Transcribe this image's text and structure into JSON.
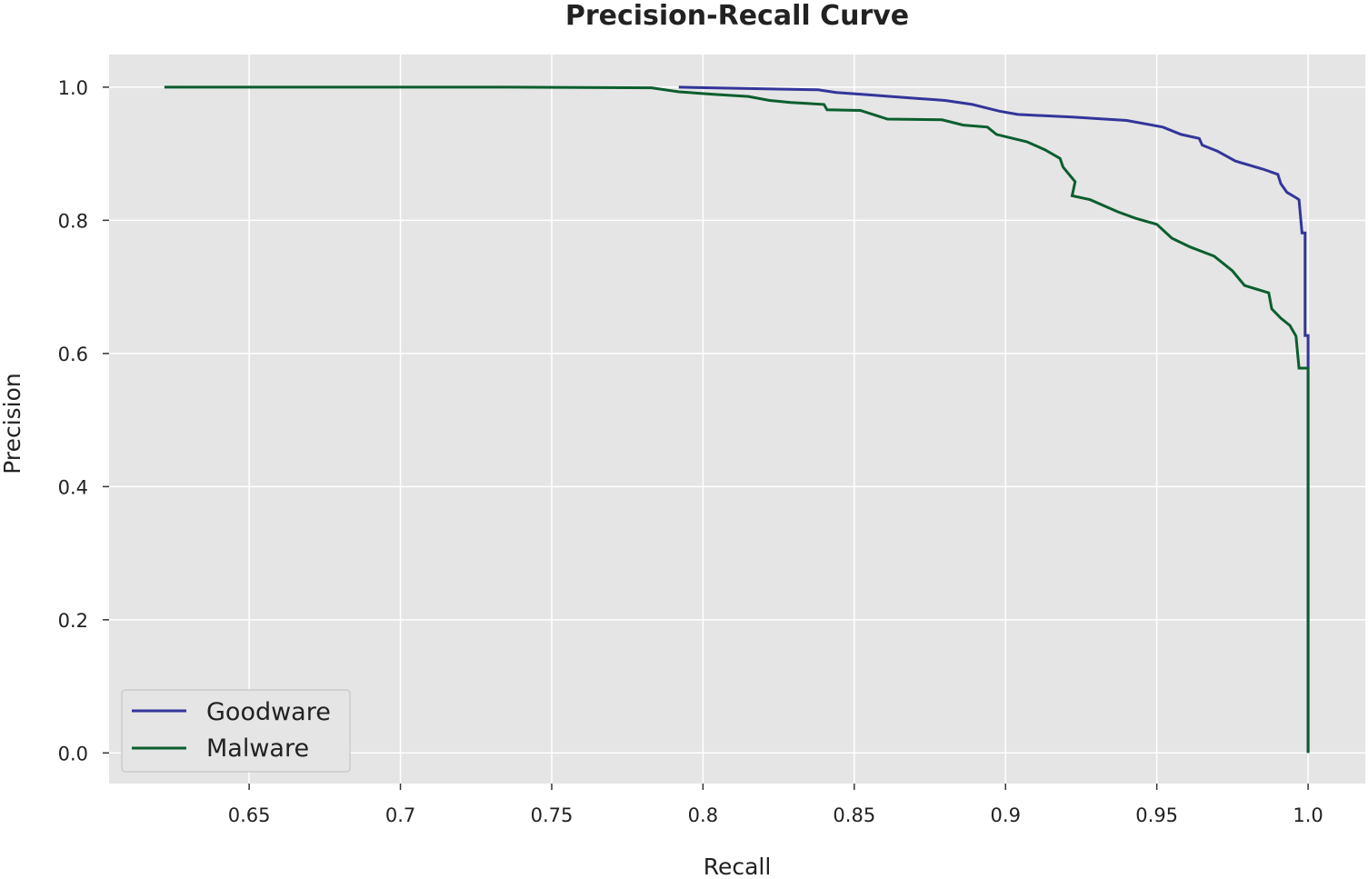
{
  "chart_data": {
    "type": "line",
    "title": "Precision-Recall Curve",
    "xlabel": "Recall",
    "ylabel": "Precision",
    "xlim": [
      0.6037,
      1.0189
    ],
    "ylim": [
      -0.046,
      1.049
    ],
    "xticks": [
      0.65,
      0.7,
      0.75,
      0.8,
      0.85,
      0.9,
      0.95,
      1.0
    ],
    "xtick_labels": [
      "0.65",
      "0.7",
      "0.75",
      "0.8",
      "0.85",
      "0.9",
      "0.95",
      "1.0"
    ],
    "yticks": [
      0.0,
      0.2,
      0.4,
      0.6,
      0.8,
      1.0
    ],
    "ytick_labels": [
      "0.0",
      "0.2",
      "0.4",
      "0.6",
      "0.8",
      "1.0"
    ],
    "grid": true,
    "background": "#e5e5e5",
    "legend_position": "bottom-left",
    "series": [
      {
        "name": "Goodware",
        "color": "#33359a",
        "x": [
          0.792,
          0.838,
          0.844,
          0.853,
          0.868,
          0.88,
          0.889,
          0.898,
          0.904,
          0.922,
          0.94,
          0.952,
          0.958,
          0.964,
          0.965,
          0.97,
          0.976,
          0.985,
          0.99,
          0.991,
          0.993,
          0.996,
          0.997,
          0.998,
          0.999,
          0.999,
          1.0,
          1.0
        ],
        "y": [
          1.0,
          0.996,
          0.992,
          0.989,
          0.984,
          0.98,
          0.974,
          0.964,
          0.959,
          0.955,
          0.95,
          0.94,
          0.929,
          0.923,
          0.913,
          0.904,
          0.889,
          0.877,
          0.869,
          0.855,
          0.842,
          0.834,
          0.831,
          0.781,
          0.781,
          0.627,
          0.627,
          0.0
        ]
      },
      {
        "name": "Malware",
        "color": "#0b5e2e",
        "x": [
          0.622,
          0.736,
          0.783,
          0.792,
          0.804,
          0.815,
          0.822,
          0.829,
          0.84,
          0.841,
          0.852,
          0.861,
          0.879,
          0.886,
          0.894,
          0.897,
          0.907,
          0.913,
          0.918,
          0.919,
          0.923,
          0.922,
          0.928,
          0.937,
          0.943,
          0.95,
          0.955,
          0.961,
          0.969,
          0.975,
          0.979,
          0.987,
          0.988,
          0.991,
          0.994,
          0.996,
          0.997,
          1.0,
          1.0
        ],
        "y": [
          1.0,
          1.0,
          0.999,
          0.993,
          0.989,
          0.986,
          0.98,
          0.977,
          0.974,
          0.966,
          0.965,
          0.952,
          0.951,
          0.943,
          0.94,
          0.929,
          0.918,
          0.906,
          0.893,
          0.88,
          0.858,
          0.837,
          0.831,
          0.813,
          0.803,
          0.794,
          0.773,
          0.76,
          0.746,
          0.724,
          0.702,
          0.691,
          0.667,
          0.653,
          0.642,
          0.626,
          0.578,
          0.578,
          0.0
        ]
      }
    ]
  }
}
